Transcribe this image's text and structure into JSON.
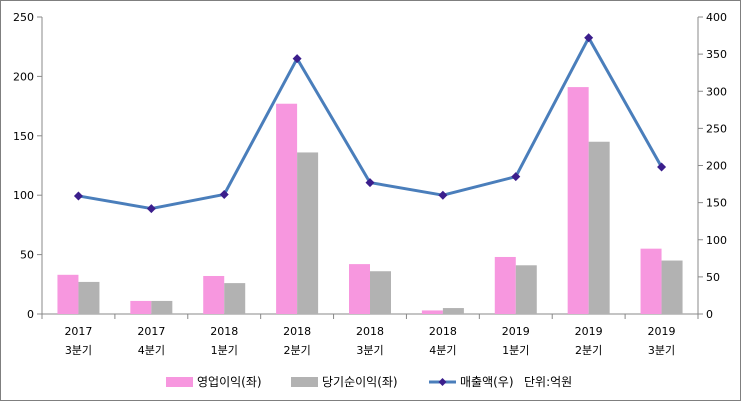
{
  "chart_data": {
    "type": "bar",
    "categories": [
      {
        "year": "2017",
        "quarter": "3분기"
      },
      {
        "year": "2017",
        "quarter": "4분기"
      },
      {
        "year": "2018",
        "quarter": "1분기"
      },
      {
        "year": "2018",
        "quarter": "2분기"
      },
      {
        "year": "2018",
        "quarter": "3분기"
      },
      {
        "year": "2018",
        "quarter": "4분기"
      },
      {
        "year": "2019",
        "quarter": "1분기"
      },
      {
        "year": "2019",
        "quarter": "2분기"
      },
      {
        "year": "2019",
        "quarter": "3분기"
      }
    ],
    "series": [
      {
        "name": "영업이익(좌)",
        "type": "bar",
        "axis": "left",
        "color": "#f797df",
        "values": [
          33,
          11,
          32,
          177,
          42,
          3,
          48,
          191,
          55
        ]
      },
      {
        "name": "당기순이익(좌)",
        "type": "bar",
        "axis": "left",
        "color": "#b2b2b2",
        "values": [
          27,
          11,
          26,
          136,
          36,
          5,
          41,
          145,
          45
        ]
      },
      {
        "name": "매출액(우)",
        "type": "line",
        "axis": "right",
        "color": "#4a7ebb",
        "marker_color": "#3b1e8c",
        "values": [
          159,
          142,
          161,
          344,
          177,
          160,
          185,
          372,
          198
        ]
      }
    ],
    "left_axis": {
      "min": 0,
      "max": 250,
      "ticks": [
        "0",
        "50",
        "100",
        "150",
        "200",
        "250"
      ]
    },
    "right_axis": {
      "min": 0,
      "max": 400,
      "ticks": [
        "0",
        "50",
        "100",
        "150",
        "200",
        "250",
        "300",
        "350",
        "400"
      ]
    },
    "unit_note": "단위:억원",
    "legend_position": "bottom",
    "grid": false
  }
}
